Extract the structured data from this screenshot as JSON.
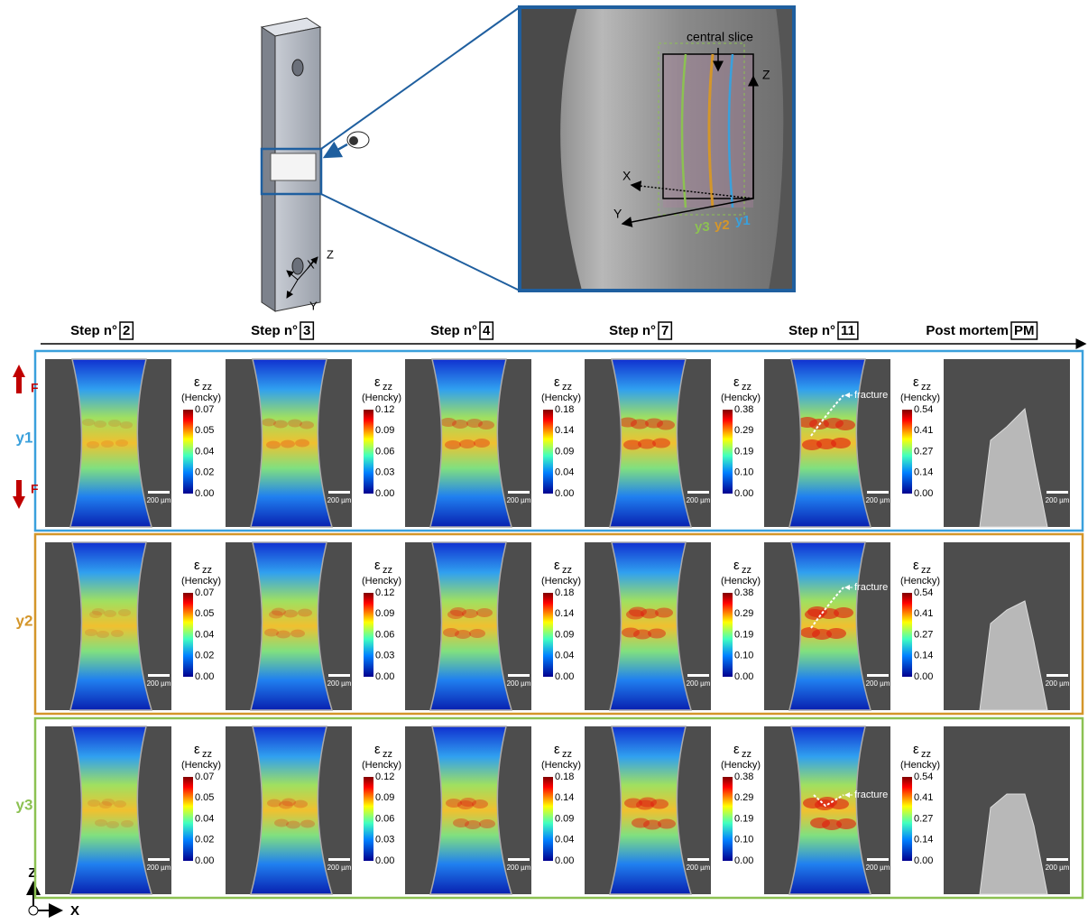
{
  "specimen": {
    "axes": [
      "Z",
      "X",
      "Y"
    ]
  },
  "zoom": {
    "label": "central slice",
    "axes": [
      "Z",
      "X",
      "Y"
    ],
    "slices": [
      "y3",
      "y2",
      "y1"
    ]
  },
  "steps": [
    {
      "prefix": "Step n°",
      "number": "2",
      "ticks": [
        "0.07",
        "0.05",
        "0.04",
        "0.02",
        "0.00"
      ]
    },
    {
      "prefix": "Step n°",
      "number": "3",
      "ticks": [
        "0.12",
        "0.09",
        "0.06",
        "0.03",
        "0.00"
      ]
    },
    {
      "prefix": "Step n°",
      "number": "4",
      "ticks": [
        "0.18",
        "0.14",
        "0.09",
        "0.04",
        "0.00"
      ]
    },
    {
      "prefix": "Step n°",
      "number": "7",
      "ticks": [
        "0.38",
        "0.29",
        "0.19",
        "0.10",
        "0.00"
      ]
    },
    {
      "prefix": "Step n°",
      "number": "11",
      "ticks": [
        "0.54",
        "0.41",
        "0.27",
        "0.14",
        "0.00"
      ]
    },
    {
      "prefix": "Post mortem",
      "number": "PM"
    }
  ],
  "colorbar": {
    "symbol": "ε",
    "subscript": "zz",
    "unit": "(Hencky)"
  },
  "scale_bar": "200 µm",
  "rows": [
    {
      "label": "y1",
      "color": "#3aa0dc"
    },
    {
      "label": "y2",
      "color": "#d4962a"
    },
    {
      "label": "y3",
      "color": "#8cc152"
    }
  ],
  "force": "F",
  "annotation": "fracture",
  "frame_axes": [
    "Z",
    "X"
  ]
}
